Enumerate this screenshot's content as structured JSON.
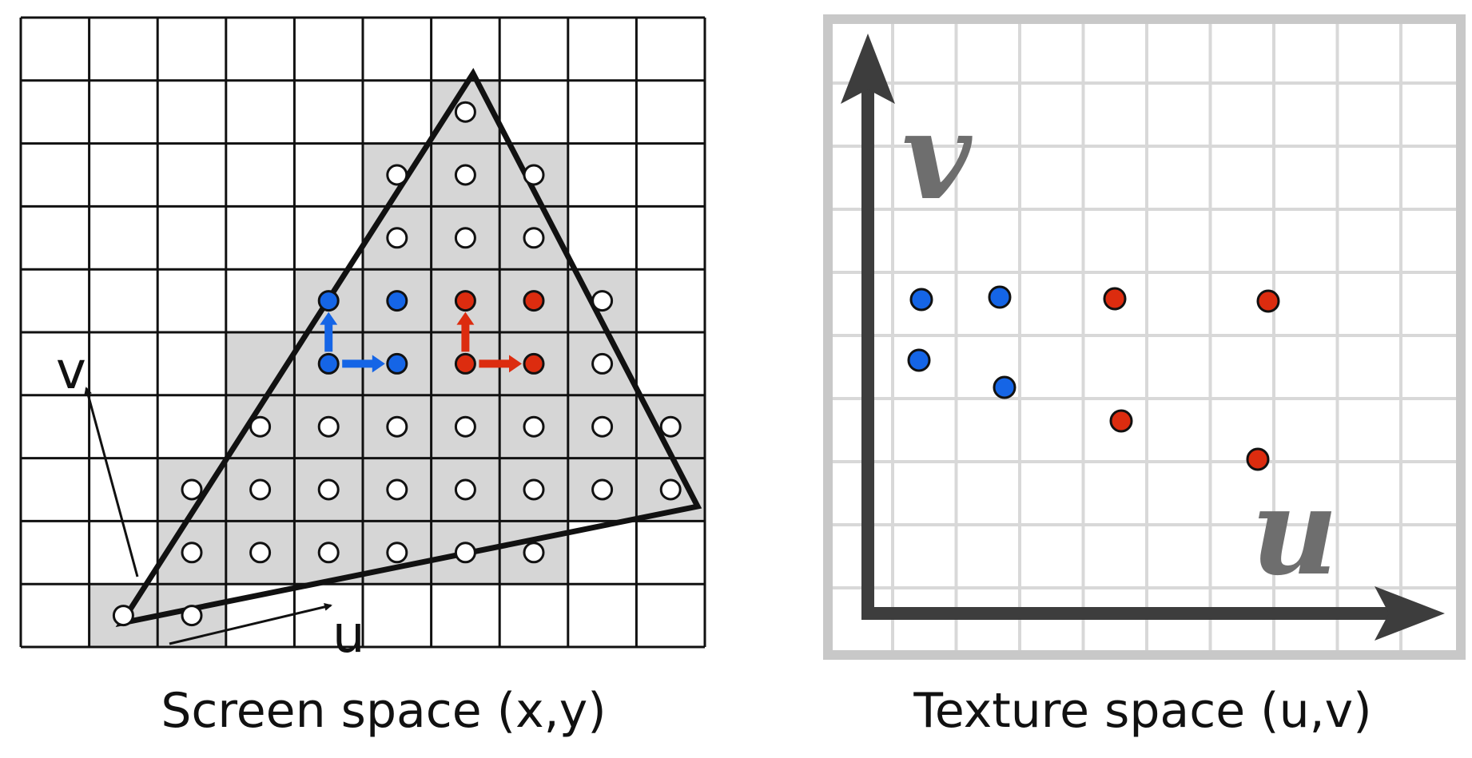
{
  "screen_panel": {
    "caption": "Screen space (x,y)",
    "label_u": "u",
    "label_v": "v"
  },
  "texture_panel": {
    "caption": "Texture space (u,v)",
    "label_u": "u",
    "label_v": "v"
  },
  "colors": {
    "blue": "#1565e6",
    "red": "#dc2c0f",
    "cell_fill": "#d6d6d6",
    "grid_dark": "#111111",
    "grid_light": "#d8d8d8",
    "axis": "#3d3d3d",
    "texture_label": "#6e6e6e"
  }
}
